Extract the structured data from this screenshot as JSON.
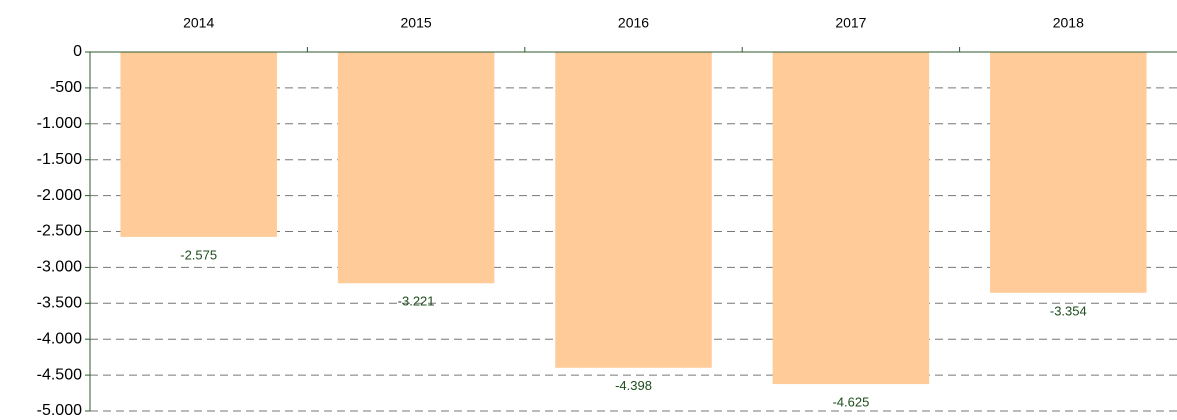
{
  "chart_data": {
    "type": "bar",
    "categories": [
      "2014",
      "2015",
      "2016",
      "2017",
      "2018"
    ],
    "values": [
      -2575,
      -3221,
      -4398,
      -4625,
      -3354
    ],
    "value_labels": [
      "-2.575",
      "-3.221",
      "-4.398",
      "-4.625",
      "-3.354"
    ],
    "color": "#ffcc99",
    "ylim": [
      -5000,
      0
    ],
    "yticks": [
      0,
      -500,
      {
        "value": -1000,
        "label": "-1.000"
      },
      {
        "value": -1500,
        "label": "-1.500"
      },
      {
        "value": -2000,
        "label": "-2.000"
      },
      {
        "value": -2500,
        "label": "-2.500"
      },
      {
        "value": -3000,
        "label": "-3.000"
      },
      {
        "value": -3500,
        "label": "-3.500"
      },
      {
        "value": -4000,
        "label": "-4.000"
      },
      {
        "value": -4500,
        "label": "-4.500"
      },
      {
        "value": -5000,
        "label": "-5.000"
      }
    ],
    "grid": true
  }
}
